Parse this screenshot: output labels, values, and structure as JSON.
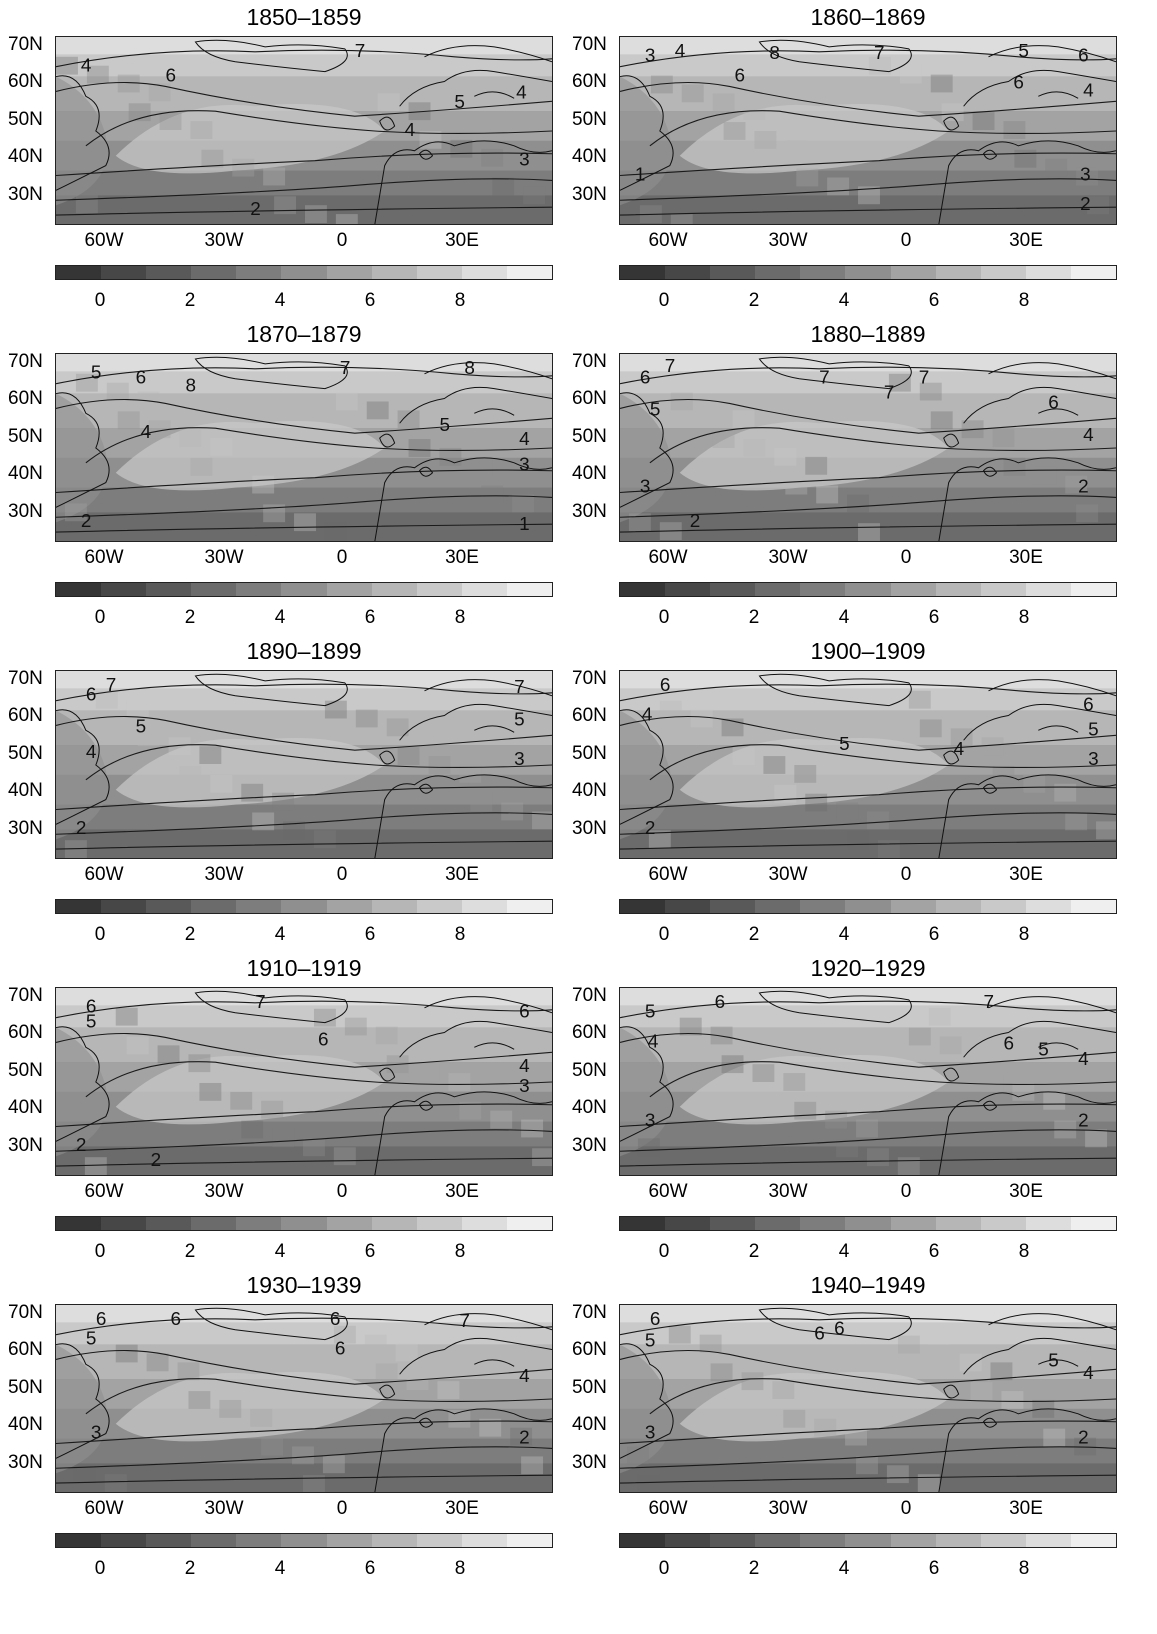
{
  "lat_labels": [
    "70N",
    "60N",
    "50N",
    "40N",
    "30N"
  ],
  "lon_labels": [
    "60W",
    "30W",
    "0",
    "30E"
  ],
  "colorbar": {
    "ticks": [
      "0",
      "2",
      "4",
      "6",
      "8"
    ],
    "colors": [
      "#353535",
      "#474747",
      "#595959",
      "#6b6b6b",
      "#7d7d7d",
      "#8f8f8f",
      "#a3a3a3",
      "#b6b6b6",
      "#c9c9c9",
      "#dddddd",
      "#efefef",
      "#ffffff"
    ]
  },
  "panels": [
    {
      "title": "1850–1859",
      "labels": [
        "7",
        "6",
        "4",
        "5",
        "4",
        "3",
        "2",
        "4"
      ]
    },
    {
      "title": "1860–1869",
      "labels": [
        "3",
        "4",
        "8",
        "7",
        "6",
        "6",
        "5",
        "6",
        "4",
        "3",
        "2",
        "1"
      ]
    },
    {
      "title": "1870–1879",
      "labels": [
        "5",
        "6",
        "8",
        "7",
        "8",
        "4",
        "5",
        "4",
        "3",
        "2",
        "1"
      ]
    },
    {
      "title": "1880–1889",
      "labels": [
        "7",
        "6",
        "5",
        "7",
        "7",
        "7",
        "6",
        "4",
        "3",
        "2",
        "2"
      ]
    },
    {
      "title": "1890–1899",
      "labels": [
        "7",
        "6",
        "5",
        "4",
        "7",
        "5",
        "3",
        "2"
      ]
    },
    {
      "title": "1900–1909",
      "labels": [
        "6",
        "4",
        "5",
        "4",
        "6",
        "5",
        "3",
        "2"
      ]
    },
    {
      "title": "1910–1919",
      "labels": [
        "6",
        "5",
        "7",
        "6",
        "6",
        "4",
        "3",
        "2",
        "2"
      ]
    },
    {
      "title": "1920–1929",
      "labels": [
        "5",
        "6",
        "4",
        "7",
        "6",
        "5",
        "4",
        "3",
        "2"
      ]
    },
    {
      "title": "1930–1939",
      "labels": [
        "6",
        "6",
        "6",
        "5",
        "6",
        "7",
        "4",
        "3",
        "2"
      ]
    },
    {
      "title": "1940–1949",
      "labels": [
        "6",
        "5",
        "6",
        "6",
        "5",
        "4",
        "3",
        "2"
      ]
    }
  ]
}
